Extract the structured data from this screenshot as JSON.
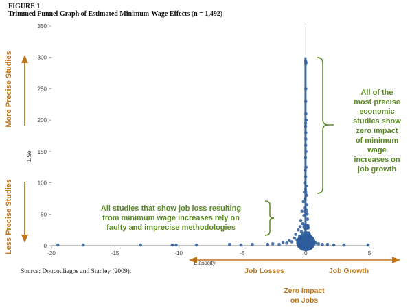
{
  "figure_label": "FIGURE 1",
  "figure_title": "Trimmed Funnel Graph of Estimated Minimum-Wage Effects (n = 1,492)",
  "source": "Source: Doucouliagos and Stanley (2009).",
  "colors": {
    "points": "#2f5d9b",
    "orange": "#c0761b",
    "green": "#5a8a23"
  },
  "chart_data": {
    "type": "scatter",
    "title": "Trimmed Funnel Graph of Estimated Minimum-Wage Effects (n = 1,492)",
    "xlabel": "Elasticity",
    "ylabel": "1/Se",
    "xlim": [
      -20,
      5
    ],
    "ylim": [
      0,
      350
    ],
    "xticks": [
      -20,
      -15,
      -10,
      -5,
      0,
      5
    ],
    "yticks": [
      0,
      50,
      100,
      150,
      200,
      250,
      300,
      350
    ],
    "grid": false,
    "reference_line_x": 0,
    "series": [
      {
        "points": [
          [
            -19.5,
            1
          ],
          [
            -17.5,
            1
          ],
          [
            -13,
            1
          ],
          [
            -10.5,
            1
          ],
          [
            -10.2,
            1
          ],
          [
            -8.6,
            1
          ],
          [
            -6.0,
            2
          ],
          [
            -5.1,
            1
          ],
          [
            -4.2,
            2
          ],
          [
            -3.0,
            2
          ],
          [
            -2.6,
            3
          ],
          [
            -2.1,
            2
          ],
          [
            -1.8,
            5
          ],
          [
            -1.5,
            4
          ],
          [
            -1.3,
            8
          ],
          [
            -1.1,
            6
          ],
          [
            -0.9,
            12
          ],
          [
            -0.8,
            18
          ],
          [
            -0.7,
            9
          ],
          [
            -0.6,
            25
          ],
          [
            -0.5,
            15
          ],
          [
            -0.45,
            30
          ],
          [
            -0.4,
            40
          ],
          [
            -0.35,
            22
          ],
          [
            -0.3,
            55
          ],
          [
            -0.25,
            35
          ],
          [
            -0.2,
            70
          ],
          [
            -0.15,
            48
          ],
          [
            -0.12,
            85
          ],
          [
            -0.1,
            60
          ],
          [
            -0.08,
            100
          ],
          [
            -0.06,
            75
          ],
          [
            -0.05,
            120
          ],
          [
            -0.04,
            90
          ],
          [
            -0.03,
            140
          ],
          [
            -0.02,
            110
          ],
          [
            -0.01,
            160
          ],
          [
            0.0,
            180
          ],
          [
            0.01,
            150
          ],
          [
            0.02,
            125
          ],
          [
            0.03,
            95
          ],
          [
            0.05,
            80
          ],
          [
            0.07,
            65
          ],
          [
            0.1,
            50
          ],
          [
            0.13,
            42
          ],
          [
            0.16,
            32
          ],
          [
            0.2,
            28
          ],
          [
            0.25,
            20
          ],
          [
            0.3,
            15
          ],
          [
            0.4,
            12
          ],
          [
            0.5,
            8
          ],
          [
            0.65,
            5
          ],
          [
            0.8,
            4
          ],
          [
            1.0,
            3
          ],
          [
            1.3,
            2
          ],
          [
            1.7,
            2
          ],
          [
            2.2,
            1
          ],
          [
            3.0,
            1
          ],
          [
            4.9,
            1
          ],
          [
            -0.02,
            195
          ],
          [
            0.0,
            210
          ],
          [
            -0.01,
            230
          ],
          [
            0.0,
            250
          ],
          [
            0.0,
            290
          ],
          [
            0.01,
            292
          ],
          [
            -0.02,
            294
          ],
          [
            0.0,
            170
          ],
          [
            0.02,
            200
          ],
          [
            -0.03,
            190
          ]
        ]
      }
    ],
    "annotations": {
      "y_top": "More Precise Studies",
      "y_bottom": "Less Precise Studies",
      "x_left": "Job Losses",
      "x_right": "Job Growth",
      "x_center": [
        "Zero Impact",
        "on Jobs"
      ],
      "right_callout": [
        "All of the",
        "most precise",
        "economic",
        "studies show",
        "zero impact",
        "of minimum",
        "wage",
        "increases on",
        "job growth"
      ],
      "left_callout": [
        "All studies that show job loss resulting",
        "from minimum wage increases rely on",
        "faulty and imprecise methodologies"
      ]
    }
  }
}
